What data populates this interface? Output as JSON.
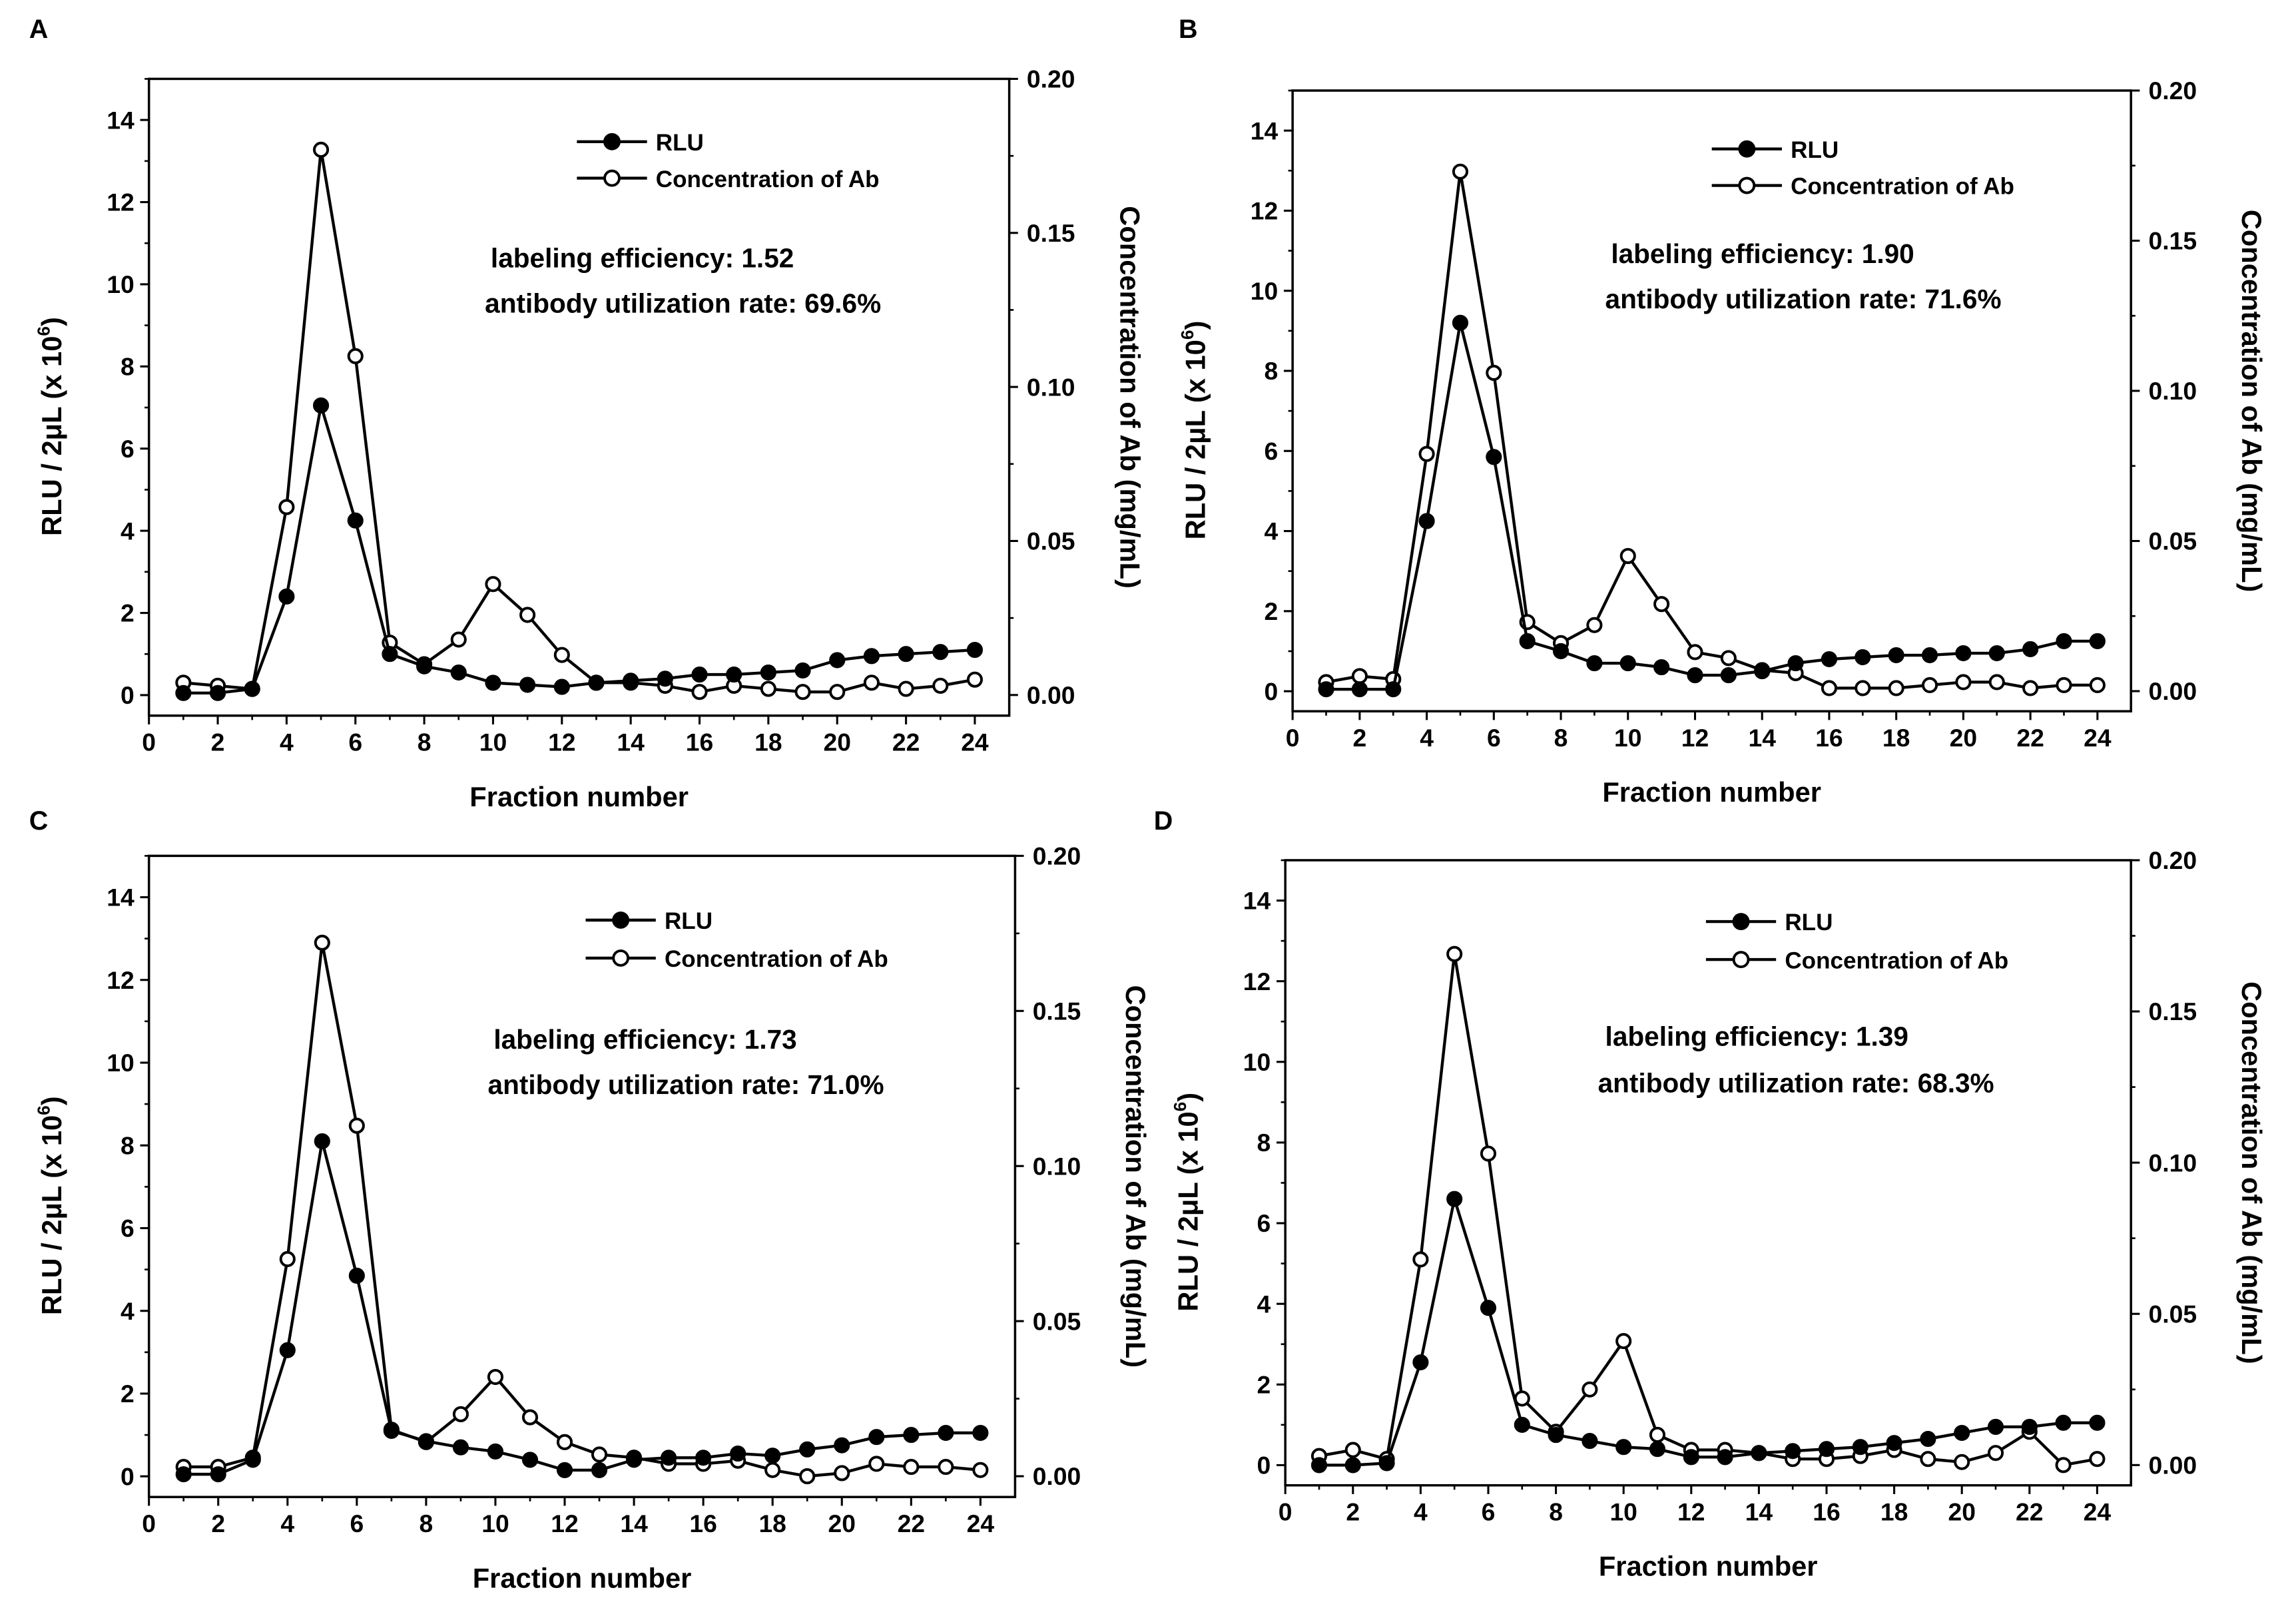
{
  "chart_data": [
    {
      "panel_label": "A",
      "type": "line",
      "x_title": "Fraction number",
      "y_left_title": "RLU / 2μL  (x 10",
      "y_left_exp": "6",
      "y_left_close": ")",
      "y_right_title": "Concentration of Ab (mg/mL)",
      "xlim": [
        0,
        25
      ],
      "ylim_left": [
        -0.5,
        15
      ],
      "ylim_right": [
        -0.0067,
        0.2
      ],
      "x_ticks": [
        "0",
        "2",
        "4",
        "6",
        "8",
        "10",
        "12",
        "14",
        "16",
        "18",
        "20",
        "22",
        "24"
      ],
      "y_left_ticks": [
        "0",
        "2",
        "4",
        "6",
        "8",
        "10",
        "12",
        "14"
      ],
      "y_right_ticks": [
        "0.00",
        "0.05",
        "0.10",
        "0.15",
        "0.20"
      ],
      "legend": [
        "RLU",
        "Concentration of Ab"
      ],
      "annotations": [
        "labeling efficiency: 1.52",
        "antibody utilization rate: 69.6%"
      ],
      "x": [
        1,
        2,
        3,
        4,
        5,
        6,
        7,
        8,
        9,
        10,
        11,
        12,
        13,
        14,
        15,
        16,
        17,
        18,
        19,
        20,
        21,
        22,
        23,
        24
      ],
      "series": [
        {
          "name": "RLU",
          "axis": "left",
          "marker": "filled",
          "values": [
            0.05,
            0.05,
            0.15,
            2.4,
            7.05,
            4.25,
            1.0,
            0.7,
            0.55,
            0.3,
            0.25,
            0.2,
            0.3,
            0.35,
            0.4,
            0.5,
            0.5,
            0.55,
            0.6,
            0.85,
            0.95,
            1.0,
            1.05,
            1.1
          ]
        },
        {
          "name": "Concentration of Ab",
          "axis": "right",
          "marker": "open",
          "values": [
            0.004,
            0.003,
            0.002,
            0.061,
            0.177,
            0.11,
            0.017,
            0.01,
            0.018,
            0.036,
            0.026,
            0.013,
            0.004,
            0.004,
            0.003,
            0.001,
            0.003,
            0.002,
            0.001,
            0.001,
            0.004,
            0.002,
            0.003,
            0.005
          ]
        }
      ]
    },
    {
      "panel_label": "B",
      "type": "line",
      "x_title": "Fraction number",
      "y_left_title": "RLU / 2μL  (x 10",
      "y_left_exp": "6",
      "y_left_close": ")",
      "y_right_title": "Concentration of Ab (mg/mL)",
      "xlim": [
        0,
        25
      ],
      "ylim_left": [
        -0.5,
        15
      ],
      "ylim_right": [
        -0.0067,
        0.2
      ],
      "x_ticks": [
        "0",
        "2",
        "4",
        "6",
        "8",
        "10",
        "12",
        "14",
        "16",
        "18",
        "20",
        "22",
        "24"
      ],
      "y_left_ticks": [
        "0",
        "2",
        "4",
        "6",
        "8",
        "10",
        "12",
        "14"
      ],
      "y_right_ticks": [
        "0.00",
        "0.05",
        "0.10",
        "0.15",
        "0.20"
      ],
      "legend": [
        "RLU",
        "Concentration of Ab"
      ],
      "annotations": [
        "labeling efficiency: 1.90",
        "antibody utilization rate: 71.6%"
      ],
      "x": [
        1,
        2,
        3,
        4,
        5,
        6,
        7,
        8,
        9,
        10,
        11,
        12,
        13,
        14,
        15,
        16,
        17,
        18,
        19,
        20,
        21,
        22,
        23,
        24
      ],
      "series": [
        {
          "name": "RLU",
          "axis": "left",
          "marker": "filled",
          "values": [
            0.05,
            0.05,
            0.05,
            4.25,
            9.2,
            5.85,
            1.25,
            1.0,
            0.7,
            0.7,
            0.6,
            0.4,
            0.4,
            0.5,
            0.7,
            0.8,
            0.85,
            0.9,
            0.9,
            0.95,
            0.95,
            1.05,
            1.25,
            1.25
          ]
        },
        {
          "name": "Concentration of Ab",
          "axis": "right",
          "marker": "open",
          "values": [
            0.003,
            0.005,
            0.004,
            0.079,
            0.173,
            0.106,
            0.023,
            0.016,
            0.022,
            0.045,
            0.029,
            0.013,
            0.011,
            0.007,
            0.006,
            0.001,
            0.001,
            0.001,
            0.002,
            0.003,
            0.003,
            0.001,
            0.002,
            0.002
          ]
        }
      ]
    },
    {
      "panel_label": "C",
      "type": "line",
      "x_title": "Fraction number",
      "y_left_title": "RLU / 2μL  (x 10",
      "y_left_exp": "6",
      "y_left_close": ")",
      "y_right_title": "Concentration of Ab (mg/mL)",
      "xlim": [
        0,
        25
      ],
      "ylim_left": [
        -0.5,
        15
      ],
      "ylim_right": [
        -0.0067,
        0.2
      ],
      "x_ticks": [
        "0",
        "2",
        "4",
        "6",
        "8",
        "10",
        "12",
        "14",
        "16",
        "18",
        "20",
        "22",
        "24"
      ],
      "y_left_ticks": [
        "0",
        "2",
        "4",
        "6",
        "8",
        "10",
        "12",
        "14"
      ],
      "y_right_ticks": [
        "0.00",
        "0.05",
        "0.10",
        "0.15",
        "0.20"
      ],
      "legend": [
        "RLU",
        "Concentration of Ab"
      ],
      "annotations": [
        "labeling efficiency: 1.73",
        "antibody utilization rate: 71.0%"
      ],
      "x": [
        1,
        2,
        3,
        4,
        5,
        6,
        7,
        8,
        9,
        10,
        11,
        12,
        13,
        14,
        15,
        16,
        17,
        18,
        19,
        20,
        21,
        22,
        23,
        24
      ],
      "series": [
        {
          "name": "RLU",
          "axis": "left",
          "marker": "filled",
          "values": [
            0.05,
            0.05,
            0.4,
            3.05,
            8.1,
            4.85,
            1.1,
            0.85,
            0.7,
            0.6,
            0.4,
            0.15,
            0.15,
            0.4,
            0.45,
            0.45,
            0.55,
            0.5,
            0.65,
            0.75,
            0.95,
            1.0,
            1.05,
            1.05
          ]
        },
        {
          "name": "Concentration of Ab",
          "axis": "right",
          "marker": "open",
          "values": [
            0.003,
            0.003,
            0.006,
            0.07,
            0.172,
            0.113,
            0.015,
            0.011,
            0.02,
            0.032,
            0.019,
            0.011,
            0.007,
            0.006,
            0.004,
            0.004,
            0.005,
            0.002,
            0.0,
            0.001,
            0.004,
            0.003,
            0.003,
            0.002
          ]
        }
      ]
    },
    {
      "panel_label": "D",
      "type": "line",
      "x_title": "Fraction number",
      "y_left_title": "RLU / 2μL  (x 10",
      "y_left_exp": "6",
      "y_left_close": ")",
      "y_right_title": "Concentration of Ab (mg/mL)",
      "xlim": [
        0,
        25
      ],
      "ylim_left": [
        -0.5,
        15
      ],
      "ylim_right": [
        -0.0067,
        0.2
      ],
      "x_ticks": [
        "0",
        "2",
        "4",
        "6",
        "8",
        "10",
        "12",
        "14",
        "16",
        "18",
        "20",
        "22",
        "24"
      ],
      "y_left_ticks": [
        "0",
        "2",
        "4",
        "6",
        "8",
        "10",
        "12",
        "14"
      ],
      "y_right_ticks": [
        "0.00",
        "0.05",
        "0.10",
        "0.15",
        "0.20"
      ],
      "legend": [
        "RLU",
        "Concentration of Ab"
      ],
      "annotations": [
        "labeling efficiency: 1.39",
        "antibody utilization rate: 68.3%"
      ],
      "x": [
        1,
        2,
        3,
        4,
        5,
        6,
        7,
        8,
        9,
        10,
        11,
        12,
        13,
        14,
        15,
        16,
        17,
        18,
        19,
        20,
        21,
        22,
        23,
        24
      ],
      "series": [
        {
          "name": "RLU",
          "axis": "left",
          "marker": "filled",
          "values": [
            0.0,
            0.0,
            0.05,
            2.55,
            6.6,
            3.9,
            1.0,
            0.75,
            0.6,
            0.45,
            0.4,
            0.2,
            0.2,
            0.3,
            0.35,
            0.4,
            0.45,
            0.55,
            0.65,
            0.8,
            0.95,
            0.95,
            1.05,
            1.05
          ]
        },
        {
          "name": "Concentration of Ab",
          "axis": "right",
          "marker": "open",
          "values": [
            0.003,
            0.005,
            0.002,
            0.068,
            0.169,
            0.103,
            0.022,
            0.011,
            0.025,
            0.041,
            0.01,
            0.005,
            0.005,
            0.004,
            0.002,
            0.002,
            0.003,
            0.005,
            0.002,
            0.001,
            0.004,
            0.011,
            0.0,
            0.002
          ]
        }
      ]
    }
  ]
}
